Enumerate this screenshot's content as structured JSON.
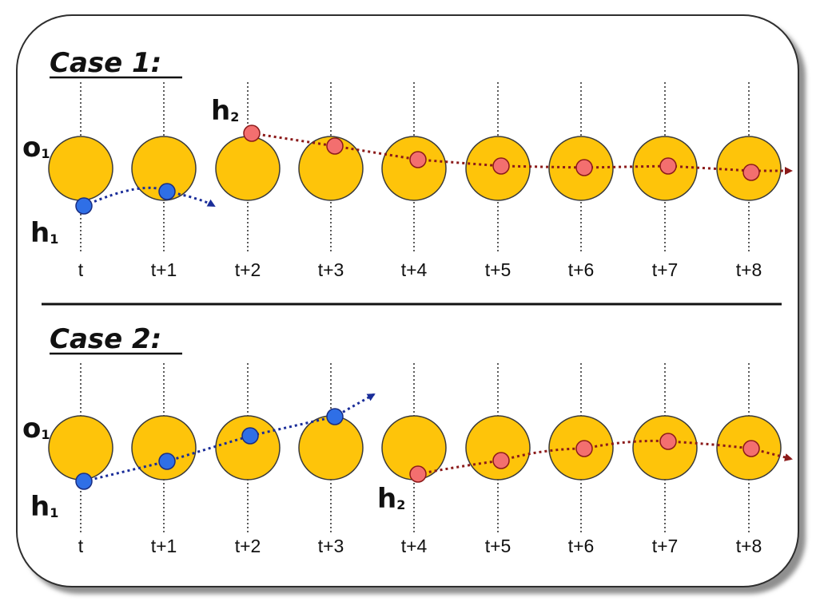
{
  "cases": [
    {
      "title": "Case 1:",
      "times": [
        "t",
        "t+1",
        "t+2",
        "t+3",
        "t+4",
        "t+5",
        "t+6",
        "t+7",
        "t+8"
      ],
      "object_label": "o",
      "object_sub": "1",
      "h1_label": "h",
      "h1_sub": "1",
      "h2_label": "h",
      "h2_sub": "2"
    },
    {
      "title": "Case 2:",
      "times": [
        "t",
        "t+1",
        "t+2",
        "t+3",
        "t+4",
        "t+5",
        "t+6",
        "t+7",
        "t+8"
      ],
      "object_label": "o",
      "object_sub": "1",
      "h1_label": "h",
      "h1_sub": "1",
      "h2_label": "h",
      "h2_sub": "2"
    }
  ],
  "colors": {
    "object": "#fec40a",
    "h1": "#2f6fe6",
    "h2": "#f36f6f",
    "h1_path": "#1a2d99",
    "h2_path": "#8b1a1a"
  }
}
